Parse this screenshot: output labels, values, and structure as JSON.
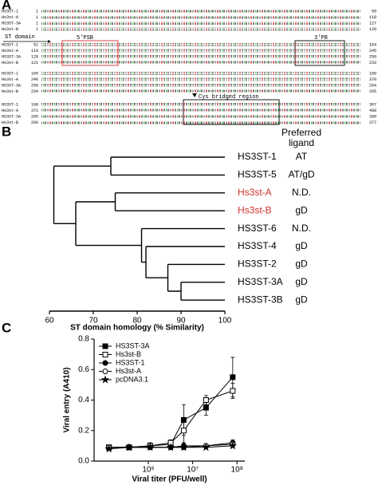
{
  "panel_a": {
    "label": "A",
    "blocks": [
      [
        {
          "name": "HS3ST-1",
          "start": 1,
          "end": 50
        },
        {
          "name": "Hs3st-A",
          "start": 1,
          "end": 118
        },
        {
          "name": "HS3ST-3A",
          "start": 1,
          "end": 127
        },
        {
          "name": "Hs3st-B",
          "start": 1,
          "end": 120
        }
      ],
      [
        {
          "name": "HS3ST-1",
          "start": 51,
          "end": 164
        },
        {
          "name": "Hs3st-A",
          "start": 119,
          "end": 245
        },
        {
          "name": "HS3ST-3A",
          "start": 128,
          "end": 255
        },
        {
          "name": "Hs3st-B",
          "start": 121,
          "end": 233
        }
      ],
      [
        {
          "name": "HS3ST-1",
          "start": 165,
          "end": 189
        },
        {
          "name": "Hs3st-A",
          "start": 246,
          "end": 370
        },
        {
          "name": "HS3ST-3A",
          "start": 256,
          "end": 264
        },
        {
          "name": "Hs3st-B",
          "start": 234,
          "end": 265
        }
      ],
      [
        {
          "name": "HS3ST-1",
          "start": 190,
          "end": 307
        },
        {
          "name": "Hs3st-A",
          "start": 371,
          "end": 488
        },
        {
          "name": "HS3ST-3A",
          "start": 265,
          "end": 390
        },
        {
          "name": "Hs3st-B",
          "start": 266,
          "end": 377
        }
      ]
    ],
    "st_domain": "ST domain",
    "psb5": "5'PSB",
    "pb3": "3'PB",
    "cys": "Cys bridged region"
  },
  "chart_data": [
    {
      "type": "dendrogram",
      "panel_label": "B",
      "ligand_header": [
        "Preferred",
        "ligand"
      ],
      "xlabel": "ST domain homology (% Similarity)",
      "xlim": [
        60,
        100
      ],
      "xticks": [
        60,
        70,
        80,
        90,
        100
      ],
      "tree": {
        "height": 61,
        "children": [
          {
            "height": 74,
            "children": [
              {
                "name": "HS3ST-1",
                "ligand": "AT",
                "color": "#000000"
              },
              {
                "name": "HS3ST-5",
                "ligand": "AT/gD",
                "color": "#000000"
              }
            ]
          },
          {
            "height": 66,
            "children": [
              {
                "height": 75,
                "children": [
                  {
                    "name": "Hs3st-A",
                    "ligand": "N.D.",
                    "color": "#d0312d"
                  },
                  {
                    "name": "Hs3st-B",
                    "ligand": "gD",
                    "color": "#d0312d"
                  }
                ]
              },
              {
                "height": 81,
                "children": [
                  {
                    "name": "HS3ST-6",
                    "ligand": "N.D.",
                    "color": "#000000"
                  },
                  {
                    "height": 82,
                    "children": [
                      {
                        "name": "HS3ST-4",
                        "ligand": "gD",
                        "color": "#000000"
                      },
                      {
                        "height": 87,
                        "children": [
                          {
                            "name": "HS3ST-2",
                            "ligand": "gD",
                            "color": "#000000"
                          },
                          {
                            "height": 90,
                            "children": [
                              {
                                "name": "HS3ST-3A",
                                "ligand": "gD",
                                "color": "#000000"
                              },
                              {
                                "name": "HS3ST-3B",
                                "ligand": "gD",
                                "color": "#000000"
                              }
                            ]
                          }
                        ]
                      }
                    ]
                  }
                ]
              }
            ]
          }
        ]
      }
    },
    {
      "type": "line",
      "panel_label": "C",
      "xlabel": "Viral titer (PFU/well)",
      "ylabel": "Viral entry (A410)",
      "xscale": "log",
      "xlim": [
        60000,
        150000000
      ],
      "xticks": [
        {
          "value": 1000000,
          "label": "10⁶"
        },
        {
          "value": 10000000,
          "label": "10⁷"
        },
        {
          "value": 100000000,
          "label": "10⁸"
        }
      ],
      "ylim": [
        0,
        0.8
      ],
      "yticks": [
        {
          "value": 0,
          "label": "0.0"
        },
        0.2,
        0.4,
        0.6,
        0.8
      ],
      "x": [
        130000,
        370000,
        1100000,
        3200000,
        6300000,
        20000000,
        80000000
      ],
      "series": [
        {
          "name": "HS3ST-3A",
          "color": "#000000",
          "marker": "square-filled",
          "values": [
            0.09,
            0.09,
            0.1,
            0.11,
            0.27,
            0.35,
            0.55
          ],
          "errors": [
            0.01,
            0.01,
            0.01,
            0.02,
            0.1,
            0.05,
            0.13
          ]
        },
        {
          "name": "Hs3st-B",
          "color": "#000000",
          "marker": "square-open",
          "values": [
            0.09,
            0.09,
            0.1,
            0.12,
            0.2,
            0.4,
            0.46
          ],
          "errors": [
            0.01,
            0.01,
            0.02,
            0.02,
            0.08,
            0.03,
            0.05
          ]
        },
        {
          "name": "HS3ST-1",
          "color": "#000000",
          "marker": "circle-filled",
          "values": [
            0.09,
            0.09,
            0.09,
            0.09,
            0.1,
            0.1,
            0.12
          ],
          "errors": [
            0.01,
            0.01,
            0.01,
            0.01,
            0.01,
            0.01,
            0.02
          ]
        },
        {
          "name": "Hs3st-A",
          "color": "#000000",
          "marker": "circle-open",
          "values": [
            0.09,
            0.09,
            0.09,
            0.09,
            0.09,
            0.1,
            0.11
          ],
          "errors": [
            0.01,
            0.01,
            0.01,
            0.01,
            0.01,
            0.01,
            0.01
          ]
        },
        {
          "name": "pcDNA3.1",
          "color": "#000000",
          "marker": "star",
          "values": [
            0.08,
            0.09,
            0.09,
            0.09,
            0.09,
            0.09,
            0.1
          ],
          "errors": [
            0.01,
            0.01,
            0.01,
            0.01,
            0.01,
            0.01,
            0.01
          ]
        }
      ]
    }
  ]
}
